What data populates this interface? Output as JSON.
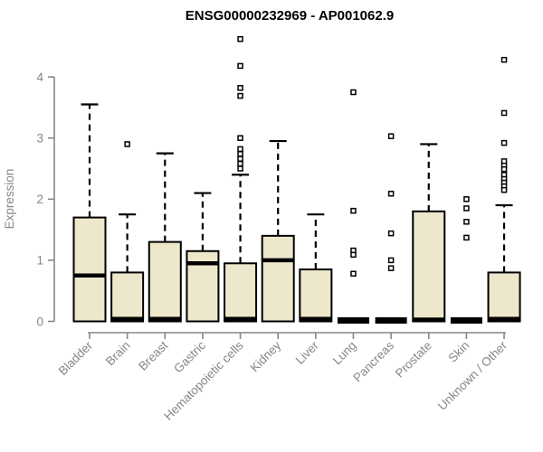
{
  "chart_data": {
    "type": "boxplot",
    "title": "ENSG00000232969 - AP001062.9",
    "ylabel": "Expression",
    "xlabel": "",
    "ylim": [
      0,
      4.7
    ],
    "yticks": [
      0,
      1,
      2,
      3,
      4
    ],
    "grid": false,
    "legend": "none",
    "categories": [
      "Bladder",
      "Brain",
      "Breast",
      "Gastric",
      "Hematopoietic cells",
      "Kidney",
      "Liver",
      "Lung",
      "Pancreas",
      "Prostate",
      "Skin",
      "Unknown / Other"
    ],
    "series": [
      {
        "category": "Bladder",
        "slug": "bladder",
        "q1": 0,
        "median": 0.75,
        "q3": 1.7,
        "whisker_low": 0,
        "whisker_high": 3.55,
        "outliers": []
      },
      {
        "category": "Brain",
        "slug": "brain",
        "q1": 0,
        "median": 0.04,
        "q3": 0.8,
        "whisker_low": 0,
        "whisker_high": 1.75,
        "outliers": [
          2.9
        ]
      },
      {
        "category": "Breast",
        "slug": "breast",
        "q1": 0,
        "median": 0.04,
        "q3": 1.3,
        "whisker_low": 0,
        "whisker_high": 2.75,
        "outliers": []
      },
      {
        "category": "Gastric",
        "slug": "gastric",
        "q1": 0,
        "median": 0.95,
        "q3": 1.15,
        "whisker_low": 0,
        "whisker_high": 2.1,
        "outliers": []
      },
      {
        "category": "Hematopoietic cells",
        "slug": "hematopoietic-cells",
        "q1": 0,
        "median": 0.04,
        "q3": 0.95,
        "whisker_low": 0,
        "whisker_high": 2.4,
        "outliers": [
          4.62,
          4.18,
          3.82,
          3.69,
          3.0,
          2.82,
          2.74,
          2.66,
          2.58,
          2.5
        ]
      },
      {
        "category": "Kidney",
        "slug": "kidney",
        "q1": 0,
        "median": 1.0,
        "q3": 1.4,
        "whisker_low": 0,
        "whisker_high": 2.95,
        "outliers": []
      },
      {
        "category": "Liver",
        "slug": "liver",
        "q1": 0,
        "median": 0.04,
        "q3": 0.85,
        "whisker_low": 0,
        "whisker_high": 1.75,
        "outliers": []
      },
      {
        "category": "Lung",
        "slug": "lung",
        "q1": 0,
        "median": 0.0,
        "q3": 0.0,
        "whisker_low": 0,
        "whisker_high": 0.0,
        "outliers": [
          3.75,
          1.81,
          1.16,
          1.09,
          0.78
        ]
      },
      {
        "category": "Pancreas",
        "slug": "pancreas",
        "q1": 0,
        "median": 0.0,
        "q3": 0.0,
        "whisker_low": 0,
        "whisker_high": 0.0,
        "outliers": [
          3.03,
          2.09,
          1.44,
          1.0,
          0.87
        ]
      },
      {
        "category": "Prostate",
        "slug": "prostate",
        "q1": 0,
        "median": 0.03,
        "q3": 1.8,
        "whisker_low": 0,
        "whisker_high": 2.9,
        "outliers": []
      },
      {
        "category": "Skin",
        "slug": "skin",
        "q1": 0,
        "median": 0.0,
        "q3": 0.0,
        "whisker_low": 0,
        "whisker_high": 0.0,
        "outliers": [
          2.0,
          1.85,
          1.63,
          1.37
        ]
      },
      {
        "category": "Unknown / Other",
        "slug": "unknown-other",
        "q1": 0,
        "median": 0.04,
        "q3": 0.8,
        "whisker_low": 0,
        "whisker_high": 1.9,
        "outliers": [
          4.28,
          3.41,
          2.92,
          2.62,
          2.55,
          2.49,
          2.4,
          2.33,
          2.27,
          2.21,
          2.15
        ]
      }
    ],
    "style": {
      "box_fill": "#EDE7CC",
      "box_border": "#000000",
      "median_color": "#000000",
      "whisker_color": "#000000",
      "outlier_fill": "#ffffff",
      "outlier_border": "#000000",
      "axis_color": "#878787",
      "title_color": "#000000",
      "background": "#ffffff"
    }
  }
}
